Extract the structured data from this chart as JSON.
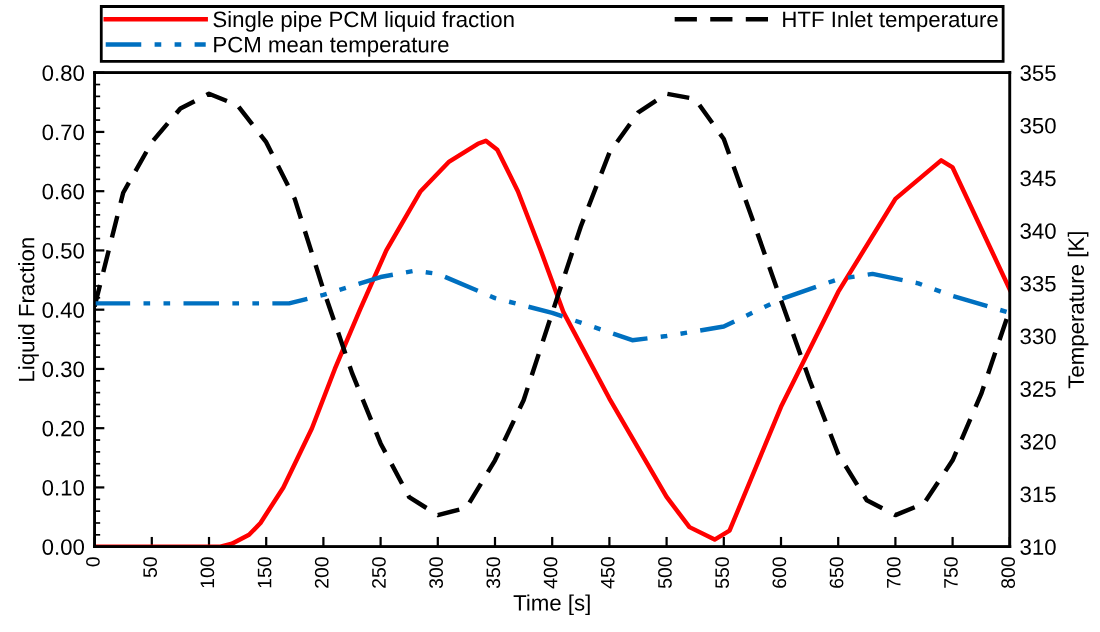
{
  "chart_data": {
    "type": "line",
    "xlabel": "Time [s]",
    "ylabel": "Liquid Fraction",
    "y2label": "Temperature [K]",
    "xlim": [
      0,
      800
    ],
    "xticks": [
      0,
      50,
      100,
      150,
      200,
      250,
      300,
      350,
      400,
      450,
      500,
      550,
      600,
      650,
      700,
      750,
      800
    ],
    "ylim": [
      0,
      0.8
    ],
    "yticks": [
      {
        "value": 0,
        "label": "0.00"
      },
      {
        "value": 0.1,
        "label": "0.10"
      },
      {
        "value": 0.2,
        "label": "0.20"
      },
      {
        "value": 0.3,
        "label": "0.30"
      },
      {
        "value": 0.4,
        "label": "0.40"
      },
      {
        "value": 0.5,
        "label": "0.50"
      },
      {
        "value": 0.6,
        "label": "0.60"
      },
      {
        "value": 0.7,
        "label": "0.70"
      },
      {
        "value": 0.8,
        "label": "0.80"
      }
    ],
    "y2lim": [
      310,
      355
    ],
    "y2ticks": [
      310,
      315,
      320,
      325,
      330,
      335,
      340,
      345,
      350,
      355
    ],
    "grid": false,
    "legend": "top",
    "marker": "none",
    "series": [
      {
        "name": "Single pipe PCM liquid fraction",
        "color": "#ff0000",
        "line_style": "solid",
        "x": [
          0,
          50,
          100,
          110,
          120,
          135,
          145,
          165,
          190,
          210,
          232,
          255,
          285,
          310,
          335,
          342,
          352,
          370,
          390,
          410,
          450,
          500,
          520,
          542,
          555,
          600,
          650,
          700,
          740,
          750,
          800
        ],
        "values": [
          0,
          0,
          0,
          0,
          0.005,
          0.02,
          0.04,
          0.1,
          0.2,
          0.3,
          0.4,
          0.5,
          0.6,
          0.65,
          0.68,
          0.685,
          0.67,
          0.6,
          0.5,
          0.395,
          0.25,
          0.084,
          0.033,
          0.012,
          0.027,
          0.236,
          0.43,
          0.587,
          0.652,
          0.64,
          0.434
        ]
      },
      {
        "name": "HTF Inlet temperature",
        "color": "#000000",
        "line_style": "dashed",
        "axis": "y2",
        "x": [
          0,
          25,
          50,
          75,
          100,
          125,
          150,
          175,
          200,
          225,
          250,
          275,
          300,
          325,
          350,
          375,
          400,
          425,
          450,
          475,
          500,
          525,
          550,
          575,
          600,
          625,
          650,
          675,
          700,
          725,
          750,
          775,
          800
        ],
        "values": [
          332.8,
          343.6,
          348.4,
          351.6,
          353.0,
          351.9,
          348.4,
          343.0,
          334.4,
          326.5,
          319.8,
          314.7,
          313.0,
          313.7,
          318.2,
          323.9,
          332.2,
          340.4,
          347.4,
          351.2,
          353.0,
          352.5,
          348.7,
          341.1,
          333.4,
          325.8,
          318.8,
          314.4,
          313.0,
          314.1,
          318.2,
          324.5,
          332.5
        ]
      },
      {
        "name": "PCM mean temperature",
        "color": "#0070c0",
        "line_style": "dashdotdot",
        "axis": "y2",
        "x": [
          0,
          100,
          170,
          200,
          250,
          280,
          300,
          350,
          400,
          470,
          500,
          550,
          600,
          650,
          680,
          720,
          750,
          800
        ],
        "values": [
          333.1,
          333.1,
          333.1,
          333.9,
          335.6,
          336.2,
          335.9,
          333.6,
          332.2,
          329.6,
          330.0,
          330.9,
          333.5,
          335.4,
          335.9,
          335.0,
          333.8,
          332.2
        ]
      }
    ]
  }
}
